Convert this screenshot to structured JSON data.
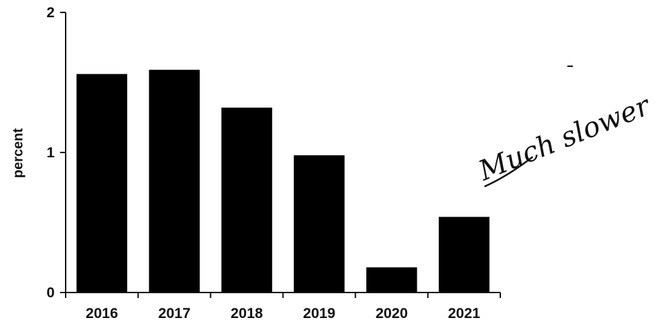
{
  "chart_data": {
    "type": "bar",
    "title": "",
    "xlabel": "",
    "ylabel": "percent",
    "categories": [
      "2016",
      "2017",
      "2018",
      "2019",
      "2020",
      "2021"
    ],
    "values": [
      1.56,
      1.59,
      1.32,
      0.98,
      0.18,
      0.54
    ],
    "ylim": [
      0,
      2
    ],
    "yticks": [
      "0",
      "1",
      "2"
    ],
    "grid": false,
    "legend": "none",
    "bar_color": "#000000",
    "annotation": "Much slower"
  }
}
